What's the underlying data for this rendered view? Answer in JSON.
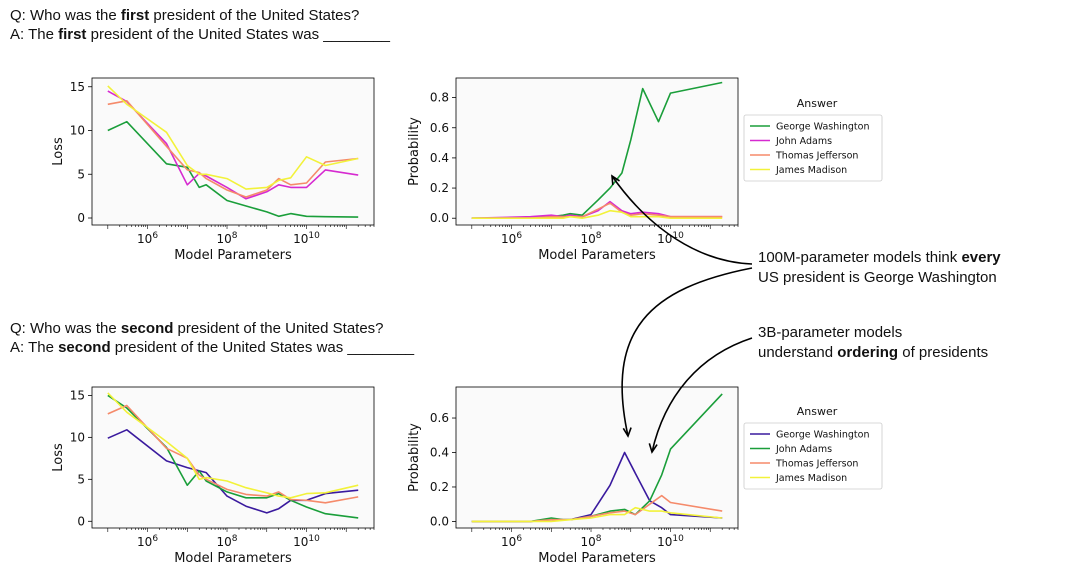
{
  "blocks": [
    {
      "question": {
        "pre": "Q: Who was the ",
        "bold": "first",
        "post": " president of the United States?"
      },
      "answer": {
        "pre": "A: The ",
        "bold": "first",
        "post": " president of the United States was ________"
      }
    },
    {
      "question": {
        "pre": "Q: Who was the ",
        "bold": "second",
        "post": " president of the United States?"
      },
      "answer": {
        "pre": "A: The ",
        "bold": "second",
        "post": " president of the United States was ________"
      }
    }
  ],
  "annotations": [
    {
      "line1_pre": "100M-parameter models think ",
      "line1_bold": "every",
      "line1_post": "",
      "line2": "US president is George Washington"
    },
    {
      "line1_pre": "3B-parameter models",
      "line1_bold": "",
      "line1_post": "",
      "line2_pre": "understand ",
      "line2_bold": "ordering",
      "line2_post": " of presidents"
    }
  ],
  "colors": {
    "George Washington": "#1a9e3a",
    "John Adams": "#d62ad0",
    "Thomas Jefferson": "#f58a6a",
    "James Madison": "#f2f23a",
    "George Washington 2": "#3a1a9e",
    "John Adams 2": "#1a9e3a"
  },
  "chart_data": [
    {
      "type": "line",
      "xscale": "log",
      "xlabel": "Model Parameters",
      "ylabel": "Loss",
      "xlim": [
        40000,
        500000000000
      ],
      "ylim": [
        -0.8,
        16
      ],
      "yticks": [
        0,
        5,
        10,
        15
      ],
      "xticks": [
        "10^6",
        "10^8",
        "10^10"
      ],
      "series": [
        {
          "color": "#1a9e3a",
          "x": [
            100000,
            300000,
            3000000,
            10000000,
            20000000,
            30000000,
            100000000,
            1000000000,
            2000000000,
            4000000000,
            10000000000,
            30000000000,
            200000000000
          ],
          "values": [
            10,
            11,
            6.2,
            5.8,
            3.5,
            3.8,
            2,
            0.7,
            0.2,
            0.5,
            0.2,
            0.15,
            0.1
          ]
        },
        {
          "color": "#d62ad0",
          "x": [
            100000,
            300000,
            3000000,
            10000000,
            20000000,
            30000000,
            100000000,
            300000000,
            1000000000,
            2000000000,
            4000000000,
            10000000000,
            30000000000,
            200000000000
          ],
          "values": [
            14.5,
            13.3,
            8.5,
            3.8,
            5.1,
            4.8,
            3.5,
            2.2,
            3,
            3.8,
            3.5,
            3.5,
            5.5,
            4.9
          ]
        },
        {
          "color": "#f58a6a",
          "x": [
            100000,
            300000,
            3000000,
            10000000,
            20000000,
            30000000,
            100000000,
            300000000,
            1000000000,
            2000000000,
            4000000000,
            10000000000,
            30000000000,
            200000000000
          ],
          "values": [
            13,
            13.4,
            8.2,
            5.5,
            5.2,
            4.5,
            3.2,
            2.4,
            3.2,
            4.5,
            3.8,
            4,
            6.4,
            6.8
          ]
        },
        {
          "color": "#f2f23a",
          "x": [
            100000,
            300000,
            3000000,
            10000000,
            20000000,
            30000000,
            100000000,
            300000000,
            1000000000,
            2000000000,
            4000000000,
            10000000000,
            30000000000,
            200000000000
          ],
          "values": [
            15.1,
            13,
            9.8,
            6,
            5,
            5,
            4.5,
            3.3,
            3.5,
            4.3,
            4.6,
            7,
            6,
            6.8
          ]
        }
      ]
    },
    {
      "type": "line",
      "xscale": "log",
      "xlabel": "Model Parameters",
      "ylabel": "Probability",
      "xlim": [
        40000,
        500000000000
      ],
      "ylim": [
        -0.045,
        0.93
      ],
      "yticks": [
        0.0,
        0.2,
        0.4,
        0.6,
        0.8
      ],
      "xticks": [
        "10^6",
        "10^8",
        "10^10"
      ],
      "legend_title": "Answer",
      "legend": [
        "George Washington",
        "John Adams",
        "Thomas Jefferson",
        "James Madison"
      ],
      "legend_colors": [
        "#1a9e3a",
        "#d62ad0",
        "#f58a6a",
        "#f2f23a"
      ],
      "series": [
        {
          "name": "George Washington",
          "color": "#1a9e3a",
          "x": [
            100000,
            3000000,
            10000000,
            20000000,
            30000000,
            60000000,
            150000000,
            300000000,
            600000000,
            1000000000,
            2000000000,
            5000000000,
            10000000000,
            200000000000
          ],
          "values": [
            0,
            0,
            0.01,
            0.02,
            0.03,
            0.02,
            0.12,
            0.2,
            0.3,
            0.52,
            0.86,
            0.64,
            0.83,
            0.9
          ]
        },
        {
          "name": "John Adams",
          "color": "#d62ad0",
          "x": [
            100000,
            3000000,
            10000000,
            20000000,
            30000000,
            60000000,
            150000000,
            300000000,
            600000000,
            1000000000,
            2000000000,
            5000000000,
            10000000000,
            200000000000
          ],
          "values": [
            0,
            0.01,
            0.02,
            0.01,
            0.02,
            0.01,
            0.05,
            0.11,
            0.05,
            0.03,
            0.04,
            0.03,
            0.01,
            0.01
          ]
        },
        {
          "name": "Thomas Jefferson",
          "color": "#f58a6a",
          "x": [
            100000,
            3000000,
            10000000,
            20000000,
            30000000,
            60000000,
            150000000,
            300000000,
            600000000,
            1000000000,
            2000000000,
            5000000000,
            10000000000,
            200000000000
          ],
          "values": [
            0,
            0,
            0.01,
            0.01,
            0.01,
            0.01,
            0.06,
            0.1,
            0.04,
            0.02,
            0.03,
            0.02,
            0.01,
            0.01
          ]
        },
        {
          "name": "James Madison",
          "color": "#f2f23a",
          "x": [
            100000,
            3000000,
            10000000,
            20000000,
            30000000,
            60000000,
            150000000,
            300000000,
            600000000,
            1000000000,
            2000000000,
            5000000000,
            10000000000,
            200000000000
          ],
          "values": [
            0,
            0,
            0,
            0,
            0.01,
            0,
            0.02,
            0.05,
            0.04,
            0.01,
            0.01,
            0.01,
            0,
            0
          ]
        }
      ]
    },
    {
      "type": "line",
      "xscale": "log",
      "xlabel": "Model Parameters",
      "ylabel": "Loss",
      "xlim": [
        40000,
        500000000000
      ],
      "ylim": [
        -0.8,
        16
      ],
      "yticks": [
        0,
        5,
        10,
        15
      ],
      "xticks": [
        "10^6",
        "10^8",
        "10^10"
      ],
      "series": [
        {
          "color": "#3a1a9e",
          "x": [
            100000,
            300000,
            3000000,
            10000000,
            30000000,
            100000000,
            300000000,
            1000000000,
            2000000000,
            4000000000,
            10000000000,
            30000000000,
            200000000000
          ],
          "values": [
            9.9,
            10.9,
            7.2,
            6.4,
            5.8,
            3,
            1.8,
            1,
            1.5,
            2.5,
            2.5,
            3.3,
            3.7
          ]
        },
        {
          "color": "#1a9e3a",
          "x": [
            100000,
            300000,
            3000000,
            10000000,
            20000000,
            30000000,
            100000000,
            300000000,
            1000000000,
            2000000000,
            4000000000,
            10000000000,
            30000000000,
            200000000000
          ],
          "values": [
            15,
            13.5,
            8.8,
            4.3,
            6,
            4.8,
            3.5,
            2.8,
            2.8,
            3.3,
            2.5,
            1.7,
            0.9,
            0.4
          ]
        },
        {
          "color": "#f58a6a",
          "x": [
            100000,
            300000,
            3000000,
            10000000,
            20000000,
            30000000,
            100000000,
            300000000,
            1000000000,
            2000000000,
            4000000000,
            10000000000,
            30000000000,
            200000000000
          ],
          "values": [
            12.8,
            13.8,
            8.7,
            7.5,
            5.5,
            5,
            3.8,
            3.2,
            3,
            3.5,
            2.6,
            2.5,
            2.2,
            2.9
          ]
        },
        {
          "color": "#f2f23a",
          "x": [
            100000,
            300000,
            3000000,
            10000000,
            20000000,
            30000000,
            100000000,
            300000000,
            1000000000,
            2000000000,
            4000000000,
            10000000000,
            30000000000,
            200000000000
          ],
          "values": [
            15.3,
            13,
            9.5,
            7.5,
            5,
            5.2,
            4.8,
            4,
            3.4,
            3,
            2.8,
            3.3,
            3.4,
            4.3
          ]
        }
      ]
    },
    {
      "type": "line",
      "xscale": "log",
      "xlabel": "Model Parameters",
      "ylabel": "Probability",
      "xlim": [
        40000,
        500000000000
      ],
      "ylim": [
        -0.038,
        0.78
      ],
      "yticks": [
        0.0,
        0.2,
        0.4,
        0.6
      ],
      "xticks": [
        "10^6",
        "10^8",
        "10^10"
      ],
      "legend_title": "Answer",
      "legend": [
        "George Washington",
        "John Adams",
        "Thomas Jefferson",
        "James Madison"
      ],
      "legend_colors": [
        "#3a1a9e",
        "#1a9e3a",
        "#f58a6a",
        "#f2f23a"
      ],
      "series": [
        {
          "name": "George Washington",
          "color": "#3a1a9e",
          "x": [
            100000,
            3000000,
            10000000,
            30000000,
            100000000,
            300000000,
            700000000,
            1300000000,
            3000000000,
            6000000000,
            10000000000,
            200000000000
          ],
          "values": [
            0,
            0,
            0.01,
            0.01,
            0.04,
            0.21,
            0.4,
            0.28,
            0.12,
            0.08,
            0.04,
            0.02
          ]
        },
        {
          "name": "John Adams",
          "color": "#1a9e3a",
          "x": [
            100000,
            3000000,
            10000000,
            20000000,
            30000000,
            100000000,
            300000000,
            700000000,
            1300000000,
            3000000000,
            6000000000,
            10000000000,
            200000000000
          ],
          "values": [
            0,
            0,
            0.02,
            0.01,
            0.01,
            0.03,
            0.06,
            0.07,
            0.04,
            0.12,
            0.27,
            0.42,
            0.74
          ]
        },
        {
          "name": "Thomas Jefferson",
          "color": "#f58a6a",
          "x": [
            100000,
            3000000,
            10000000,
            30000000,
            100000000,
            300000000,
            700000000,
            1300000000,
            3000000000,
            6000000000,
            10000000000,
            200000000000
          ],
          "values": [
            0,
            0,
            0.01,
            0.01,
            0.03,
            0.05,
            0.06,
            0.04,
            0.1,
            0.15,
            0.11,
            0.06
          ]
        },
        {
          "name": "James Madison",
          "color": "#f2f23a",
          "x": [
            100000,
            3000000,
            10000000,
            30000000,
            100000000,
            300000000,
            700000000,
            1300000000,
            3000000000,
            6000000000,
            10000000000,
            200000000000
          ],
          "values": [
            0,
            0,
            0,
            0.01,
            0.02,
            0.04,
            0.04,
            0.08,
            0.06,
            0.06,
            0.05,
            0.02
          ]
        }
      ]
    }
  ]
}
